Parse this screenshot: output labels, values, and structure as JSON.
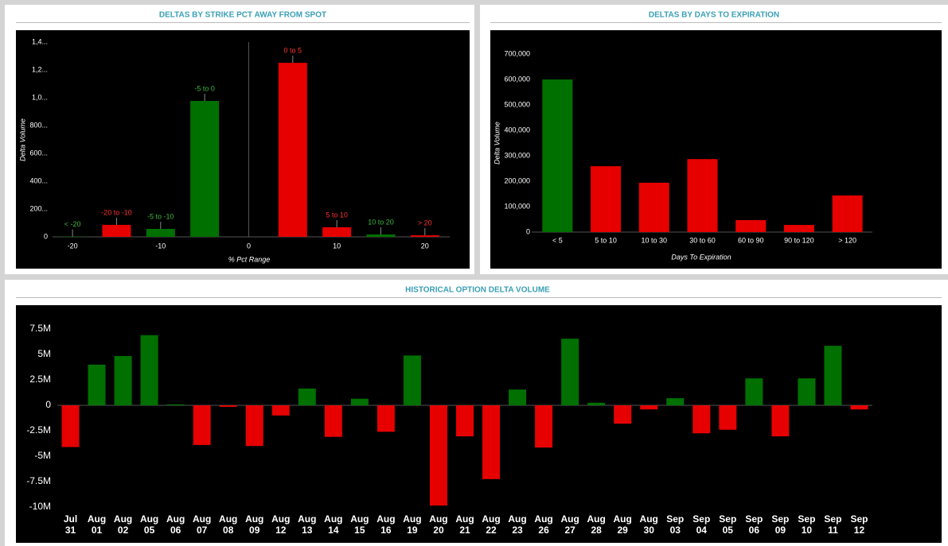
{
  "chart_data": [
    {
      "type": "bar",
      "title": "DELTAS BY STRIKE PCT AWAY FROM SPOT",
      "x_label": "% Pct Range",
      "y_label": "Delta Volume",
      "categories": [
        "< -20",
        "-20 to -10",
        "-5 to -10",
        "-5 to 0",
        "0 to 5",
        "5 to 10",
        "10 to 20",
        "> 20"
      ],
      "x": [
        -20,
        -15,
        -10,
        -5,
        5,
        10,
        15,
        20
      ],
      "values": [
        2000,
        86000,
        57000,
        977000,
        1251000,
        69000,
        17000,
        11000
      ],
      "colors": [
        "#007000",
        "#e60000",
        "#007000",
        "#007000",
        "#e60000",
        "#e60000",
        "#007000",
        "#e60000"
      ],
      "xlim": [
        -22,
        23
      ],
      "xticks": [
        -20,
        -10,
        0,
        10,
        20
      ],
      "ylim": [
        0,
        1400000
      ],
      "yticks": [
        0,
        {
          "value": 200000,
          "label": "200..."
        },
        {
          "value": 400000,
          "label": "400..."
        },
        {
          "value": 600000,
          "label": "600..."
        },
        {
          "value": 800000,
          "label": "800..."
        },
        {
          "value": 1000000,
          "label": "1,0..."
        },
        {
          "value": 1200000,
          "label": "1,2..."
        },
        {
          "value": 1400000,
          "label": "1,4..."
        }
      ]
    },
    {
      "type": "bar",
      "title": "DELTAS BY DAYS TO EXPIRATION",
      "x_label": "Days To Expiration",
      "y_label": "Delta Volume",
      "categories": [
        "< 5",
        "5 to 10",
        "10 to 30",
        "30 to 60",
        "60 to 90",
        "90 to 120",
        "> 120"
      ],
      "values": [
        600000,
        259000,
        194000,
        287000,
        47000,
        28000,
        144000
      ],
      "colors": [
        "#007000",
        "#e60000",
        "#e60000",
        "#e60000",
        "#e60000",
        "#e60000",
        "#e60000"
      ],
      "ylim": [
        0,
        700000
      ],
      "yticks": [
        0,
        {
          "value": 100000,
          "label": "100,000"
        },
        {
          "value": 200000,
          "label": "200,000"
        },
        {
          "value": 300000,
          "label": "300,000"
        },
        {
          "value": 400000,
          "label": "400,000"
        },
        {
          "value": 500000,
          "label": "500,000"
        },
        {
          "value": 600000,
          "label": "600,000"
        },
        {
          "value": 700000,
          "label": "700,000"
        }
      ]
    },
    {
      "type": "bar",
      "title": "HISTORICAL OPTION DELTA VOLUME",
      "categories": [
        "Jul 31",
        "Aug 01",
        "Aug 02",
        "Aug 05",
        "Aug 06",
        "Aug 07",
        "Aug 08",
        "Aug 09",
        "Aug 12",
        "Aug 13",
        "Aug 14",
        "Aug 15",
        "Aug 16",
        "Aug 19",
        "Aug 20",
        "Aug 21",
        "Aug 22",
        "Aug 23",
        "Aug 26",
        "Aug 27",
        "Aug 28",
        "Aug 29",
        "Aug 30",
        "Sep 03",
        "Sep 04",
        "Sep 05",
        "Sep 06",
        "Sep 09",
        "Sep 10",
        "Sep 11",
        "Sep 12"
      ],
      "values": [
        -4100000,
        4000000,
        4850000,
        6900000,
        100000,
        -3900000,
        -150000,
        -4000000,
        -1000000,
        1650000,
        -3100000,
        650000,
        -2600000,
        4900000,
        -9850000,
        -3050000,
        -7250000,
        1550000,
        -4150000,
        6550000,
        250000,
        -1800000,
        -400000,
        700000,
        -2750000,
        -2400000,
        2650000,
        -3050000,
        2650000,
        5850000,
        -400000
      ],
      "positive_color": "#007000",
      "negative_color": "#e60000",
      "ylim": [
        -10000000,
        7500000
      ],
      "yticks": [
        {
          "value": -10000000,
          "label": "-10M"
        },
        {
          "value": -7500000,
          "label": "-7.5M"
        },
        {
          "value": -5000000,
          "label": "-5M"
        },
        {
          "value": -2500000,
          "label": "-2.5M"
        },
        0,
        {
          "value": 2500000,
          "label": "2.5M"
        },
        {
          "value": 5000000,
          "label": "5M"
        },
        {
          "value": 7500000,
          "label": "7.5M"
        }
      ]
    }
  ]
}
